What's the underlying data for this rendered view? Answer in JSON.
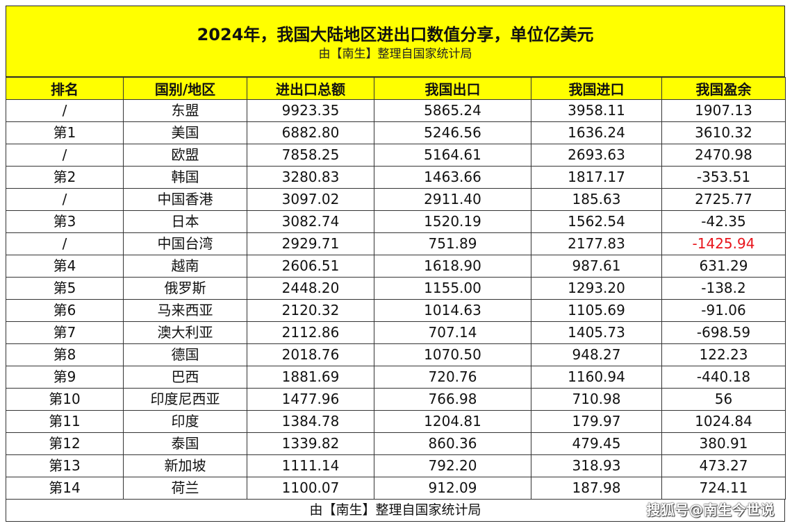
{
  "title": "2024年，我国大陆地区进出口数值分享，单位亿美元",
  "subtitle": "由【南生】整理自国家统计局",
  "headers": [
    "排名",
    "国别/地区",
    "进出口总额",
    "我国出口",
    "我国进口",
    "我国盈余"
  ],
  "rows": [
    {
      "rank": "/",
      "region": "东盟",
      "total": "9923.35",
      "export": "5865.24",
      "import": "3958.11",
      "surplus": "1907.13"
    },
    {
      "rank": "第1",
      "region": "美国",
      "total": "6882.80",
      "export": "5246.56",
      "import": "1636.24",
      "surplus": "3610.32"
    },
    {
      "rank": "/",
      "region": "欧盟",
      "total": "7858.25",
      "export": "5164.61",
      "import": "2693.63",
      "surplus": "2470.98"
    },
    {
      "rank": "第2",
      "region": "韩国",
      "total": "3280.83",
      "export": "1463.66",
      "import": "1817.17",
      "surplus": "-353.51"
    },
    {
      "rank": "/",
      "region": "中国香港",
      "total": "3097.02",
      "export": "2911.40",
      "import": "185.63",
      "surplus": "2725.77"
    },
    {
      "rank": "第3",
      "region": "日本",
      "total": "3082.74",
      "export": "1520.19",
      "import": "1562.54",
      "surplus": "-42.35"
    },
    {
      "rank": "/",
      "region": "中国台湾",
      "total": "2929.71",
      "export": "751.89",
      "import": "2177.83",
      "surplus": "-1425.94",
      "highlight": "#e8141b"
    },
    {
      "rank": "第4",
      "region": "越南",
      "total": "2606.51",
      "export": "1618.90",
      "import": "987.61",
      "surplus": "631.29"
    },
    {
      "rank": "第5",
      "region": "俄罗斯",
      "total": "2448.20",
      "export": "1155.00",
      "import": "1293.20",
      "surplus": "-138.2"
    },
    {
      "rank": "第6",
      "region": "马来西亚",
      "total": "2120.32",
      "export": "1014.63",
      "import": "1105.69",
      "surplus": "-91.06"
    },
    {
      "rank": "第7",
      "region": "澳大利亚",
      "total": "2112.86",
      "export": "707.14",
      "import": "1405.73",
      "surplus": "-698.59"
    },
    {
      "rank": "第8",
      "region": "德国",
      "total": "2018.76",
      "export": "1070.50",
      "import": "948.27",
      "surplus": "122.23"
    },
    {
      "rank": "第9",
      "region": "巴西",
      "total": "1881.69",
      "export": "720.76",
      "import": "1160.94",
      "surplus": "-440.18"
    },
    {
      "rank": "第10",
      "region": "印度尼西亚",
      "total": "1477.96",
      "export": "766.98",
      "import": "710.98",
      "surplus": "56"
    },
    {
      "rank": "第11",
      "region": "印度",
      "total": "1384.78",
      "export": "1204.81",
      "import": "179.97",
      "surplus": "1024.84"
    },
    {
      "rank": "第12",
      "region": "泰国",
      "total": "1339.82",
      "export": "860.36",
      "import": "479.45",
      "surplus": "380.91"
    },
    {
      "rank": "第13",
      "region": "新加坡",
      "total": "1111.14",
      "export": "792.20",
      "import": "318.93",
      "surplus": "473.27"
    },
    {
      "rank": "第14",
      "region": "荷兰",
      "total": "1100.07",
      "export": "912.09",
      "import": "187.98",
      "surplus": "724.11"
    }
  ],
  "footer": "由【南生】整理自国家统计局",
  "watermark": "搜狐号@南生今世说",
  "colors": {
    "header_bg": "#ffff00",
    "negative_highlight": "#e8141b"
  }
}
